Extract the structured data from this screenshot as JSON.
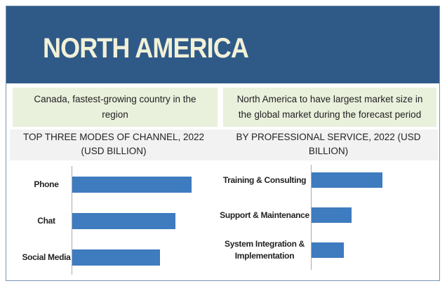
{
  "header": {
    "title": "NORTH AMERICA"
  },
  "highlights": [
    "Canada, fastest-growing country in the region",
    "North America to have largest market size in the global market during the forecast period"
  ],
  "chart_data": [
    {
      "type": "bar",
      "title": "TOP THREE MODES OF CHANNEL, 2022 (USD BILLION)",
      "categories": [
        "Phone",
        "Chat",
        "Social Media"
      ],
      "values": [
        1.7,
        1.47,
        1.25
      ],
      "color": "#3e7bbf"
    },
    {
      "type": "bar",
      "title": "BY PROFESSIONAL SERVICE, 2022 (USD BILLION)",
      "categories": [
        "Training & Consulting",
        "Support & Maintenance",
        "System Integration & Implementation"
      ],
      "values": [
        1.0,
        0.56,
        0.46
      ],
      "color": "#3e7bbf"
    }
  ]
}
